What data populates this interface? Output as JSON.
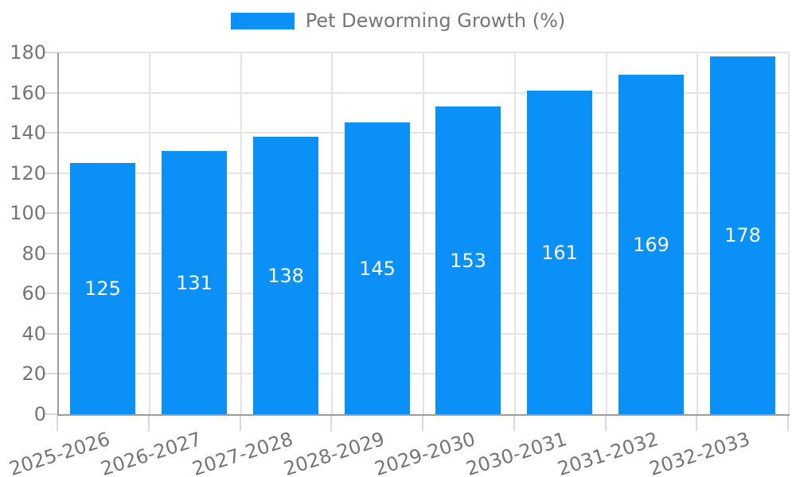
{
  "colors": {
    "bar": "#0b90f8",
    "axis": "#9c9c9c",
    "grid": "#e4e4e4",
    "tick": "#d9d9d9",
    "text": "#757575",
    "bar_label": "#ffffff",
    "background": "#ffffff"
  },
  "legend": {
    "label": "Pet Deworming Growth (%)"
  },
  "chart_data": {
    "type": "bar",
    "title": "Pet Deworming Growth (%)",
    "categories": [
      "2025-2026",
      "2026-2027",
      "2027-2028",
      "2028-2029",
      "2029-2030",
      "2030-2031",
      "2031-2032",
      "2032-2033"
    ],
    "values": [
      125,
      131,
      138,
      145,
      153,
      161,
      169,
      178
    ],
    "xlabel": "",
    "ylabel": "",
    "ylim": [
      0,
      180
    ],
    "ytick_step": 20,
    "yticks": [
      0,
      20,
      40,
      60,
      80,
      100,
      120,
      140,
      160,
      180
    ],
    "grid": true,
    "legend_position": "top-center",
    "bar_value_labels": true,
    "x_label_rotation_deg": -17.5
  }
}
